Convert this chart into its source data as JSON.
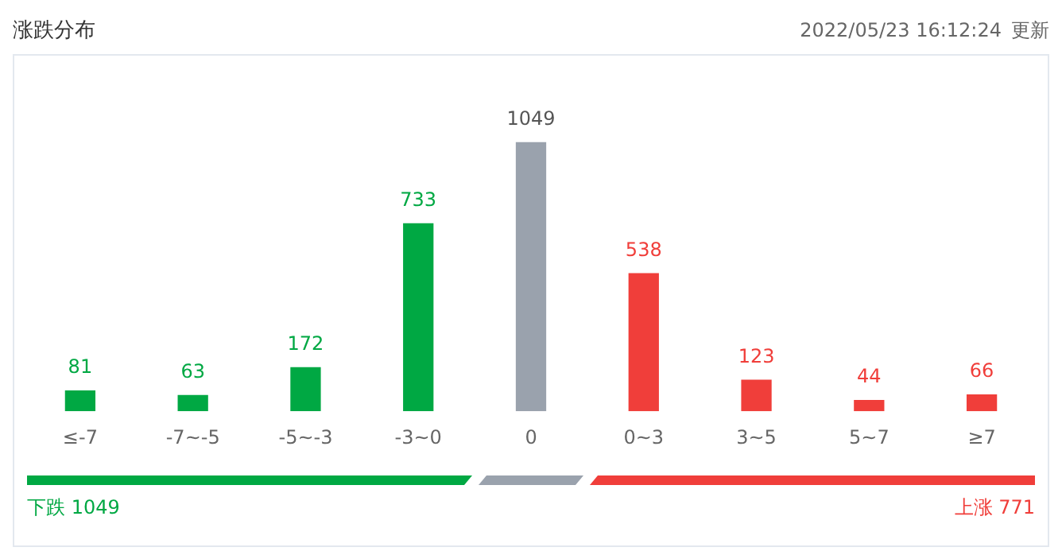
{
  "chart_data": {
    "type": "bar",
    "title": "涨跌分布",
    "subtitle": "2022/05/23 16:12:24",
    "categories": [
      "≤-7",
      "-7~-5",
      "-5~-3",
      "-3~0",
      "0",
      "0~3",
      "3~5",
      "5~7",
      "≥7"
    ],
    "values": [
      81,
      63,
      172,
      733,
      1049,
      538,
      123,
      44,
      66
    ],
    "colors": [
      "#00a843",
      "#00a843",
      "#00a843",
      "#00a843",
      "#9aa2ad",
      "#f03e3a",
      "#f03e3a",
      "#f03e3a",
      "#f03e3a"
    ],
    "data_labels": true,
    "grid": false,
    "legend": false,
    "annotations": [
      "更新",
      "下跌 1049",
      "上涨 771"
    ]
  }
}
